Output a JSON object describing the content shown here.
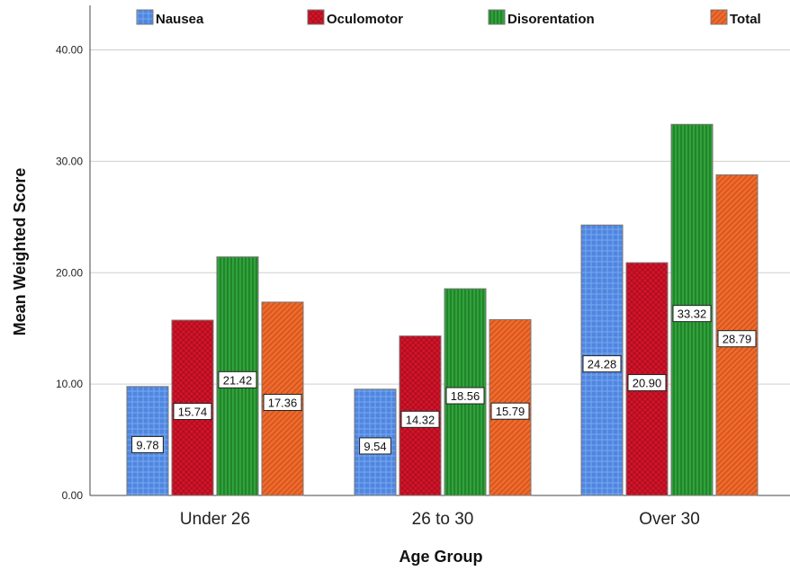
{
  "chart_data": {
    "type": "bar",
    "categories": [
      "Under 26",
      "26 to 30",
      "Over 30"
    ],
    "series": [
      {
        "name": "Nausea",
        "values": [
          9.78,
          9.54,
          24.28
        ],
        "color": "#4f86e0",
        "pattern": "crosshatch"
      },
      {
        "name": "Oculomotor",
        "values": [
          15.74,
          14.32,
          20.9
        ],
        "color": "#d4142a",
        "pattern": "diamond"
      },
      {
        "name": "Disorentation",
        "values": [
          21.42,
          18.56,
          33.32
        ],
        "color": "#2fa33a",
        "pattern": "vertical-stripes"
      },
      {
        "name": "Total",
        "values": [
          17.36,
          15.79,
          28.79
        ],
        "color": "#f06a2c",
        "pattern": "diagonal-stripes"
      }
    ],
    "value_labels": [
      [
        "9.78",
        "9.54",
        "24.28"
      ],
      [
        "15.74",
        "14.32",
        "20.90"
      ],
      [
        "21.42",
        "18.56",
        "33.32"
      ],
      [
        "17.36",
        "15.79",
        "28.79"
      ]
    ],
    "yticks": [
      0,
      10,
      20,
      30,
      40
    ],
    "ytick_labels": [
      "0.00",
      "10.00",
      "20.00",
      "30.00",
      "40.00"
    ],
    "ylim": [
      0,
      44
    ],
    "xlabel": "Age Group",
    "ylabel": "Mean Weighted Score",
    "grid": "horizontal",
    "legend_position": "top"
  }
}
